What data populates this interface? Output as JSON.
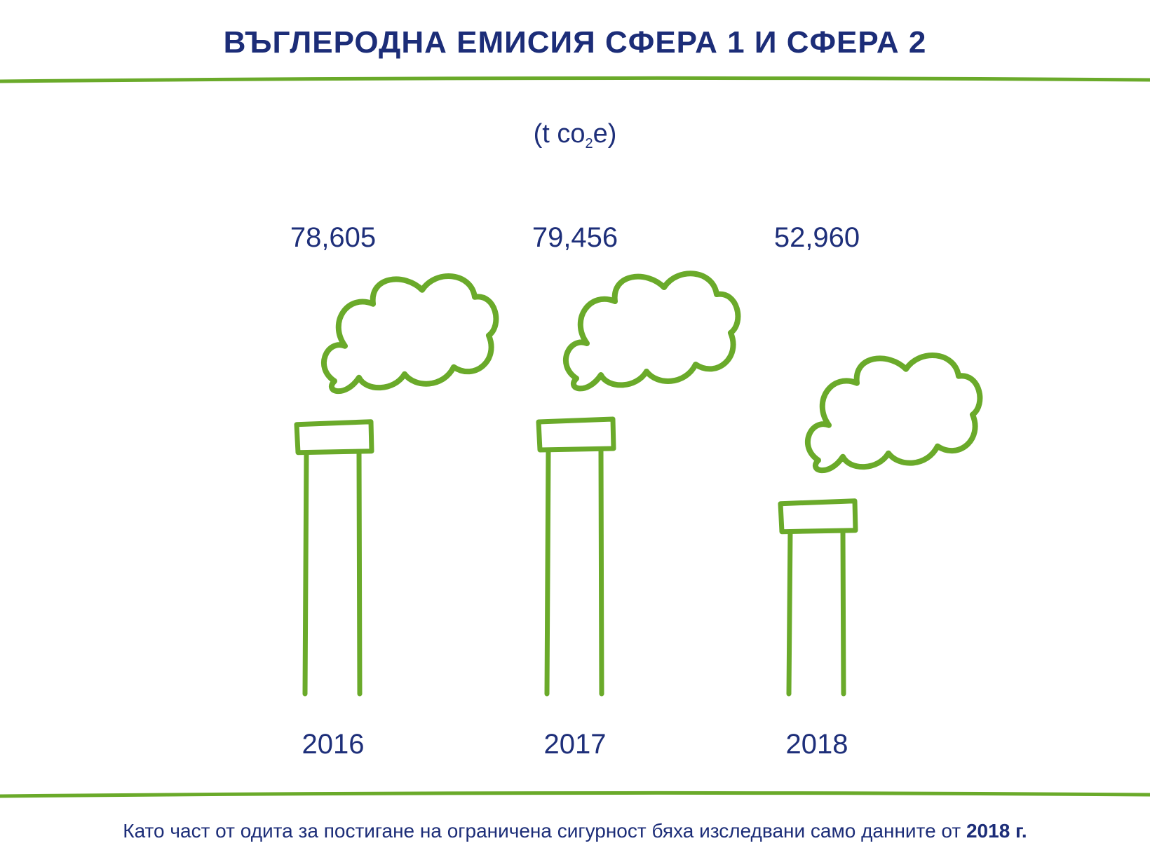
{
  "title": "ВЪГЛЕРОДНА ЕМИСИЯ СФЕРА 1 И СФЕРА 2",
  "unit": {
    "prefix": "(t co",
    "sub": "2",
    "suffix": "e)"
  },
  "colors": {
    "accent": "#6aaa2a",
    "text": "#1e2f7a"
  },
  "footnote": {
    "text": "Като част от одита за постигане на ограничена сигурност бяха изследвани само данните от ",
    "bold": "2018 г."
  },
  "chart_data": {
    "type": "bar",
    "categories": [
      "2016",
      "2017",
      "2018"
    ],
    "values": [
      78605,
      79456,
      52960
    ],
    "value_labels": [
      "78,605",
      "79,456",
      "52,960"
    ],
    "title": "ВЪГЛЕРОДНА ЕМИСИЯ СФЕРА 1 И СФЕРА 2",
    "ylabel": "(t co2e)",
    "style": "smokestack-pictogram"
  }
}
